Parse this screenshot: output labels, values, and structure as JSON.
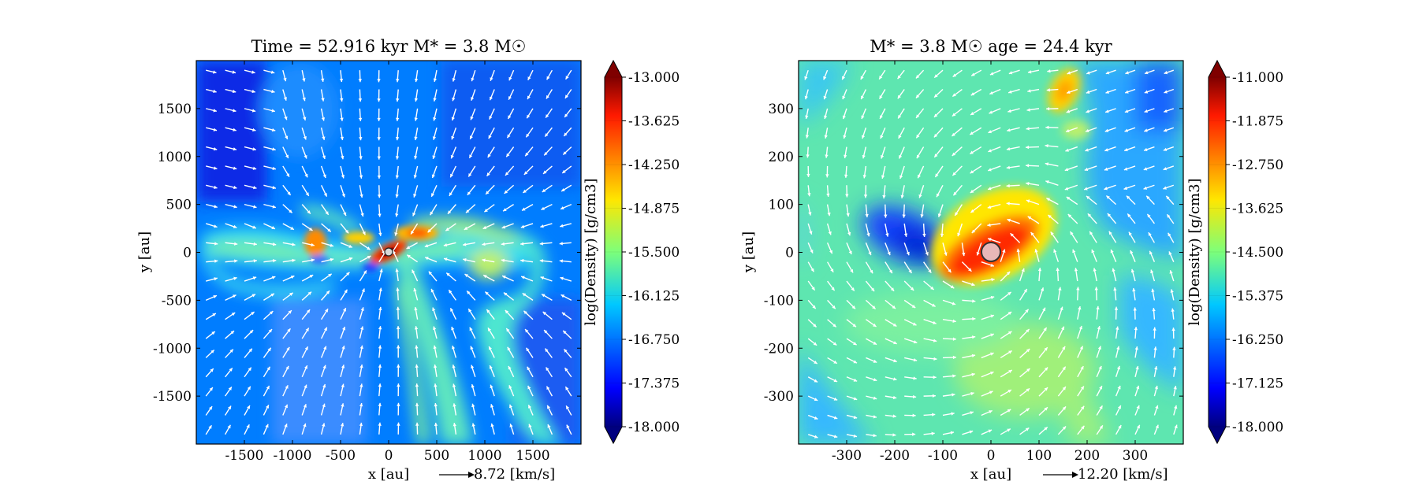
{
  "chart_data": [
    {
      "type": "heatmap",
      "title": "Time = 52.916 kyr    M* = 3.8 M☉",
      "xlabel": "x [au]",
      "ylabel": "y [au]",
      "xlim": [
        -2000,
        2000
      ],
      "ylim": [
        -2000,
        2000
      ],
      "xticks": [
        -1500,
        -1000,
        -500,
        0,
        500,
        1000,
        1500
      ],
      "yticks": [
        -1500,
        -1000,
        -500,
        0,
        500,
        1000,
        1500
      ],
      "colorbar": {
        "label": "log(Density) [g/cm3]",
        "range": [
          -18.0,
          -13.0
        ],
        "ticks": [
          "-13.000",
          "-13.625",
          "-14.250",
          "-14.875",
          "-15.500",
          "-16.125",
          "-16.750",
          "-17.375",
          "-18.000"
        ]
      },
      "velocity_key": {
        "arrow": "⟶",
        "label": "8.72 [km/s]"
      },
      "sink": {
        "x": 0,
        "y": 0
      }
    },
    {
      "type": "heatmap",
      "title": "M* = 3.8 M☉         age = 24.4 kyr",
      "xlabel": "x [au]",
      "ylabel": "y [au]",
      "xlim": [
        -400,
        400
      ],
      "ylim": [
        -400,
        400
      ],
      "xticks": [
        -300,
        -200,
        -100,
        0,
        100,
        200,
        300
      ],
      "yticks": [
        -300,
        -200,
        -100,
        0,
        100,
        200,
        300
      ],
      "colorbar": {
        "label": "log(Density) [g/cm3]",
        "range": [
          -18.0,
          -11.0
        ],
        "ticks": [
          "-11.000",
          "-11.875",
          "-12.750",
          "-13.625",
          "-14.500",
          "-15.375",
          "-16.250",
          "-17.125",
          "-18.000"
        ]
      },
      "velocity_key": {
        "arrow": "⟶",
        "label": "12.20 [km/s]"
      },
      "sink": {
        "x": 0,
        "y": 0
      }
    }
  ]
}
